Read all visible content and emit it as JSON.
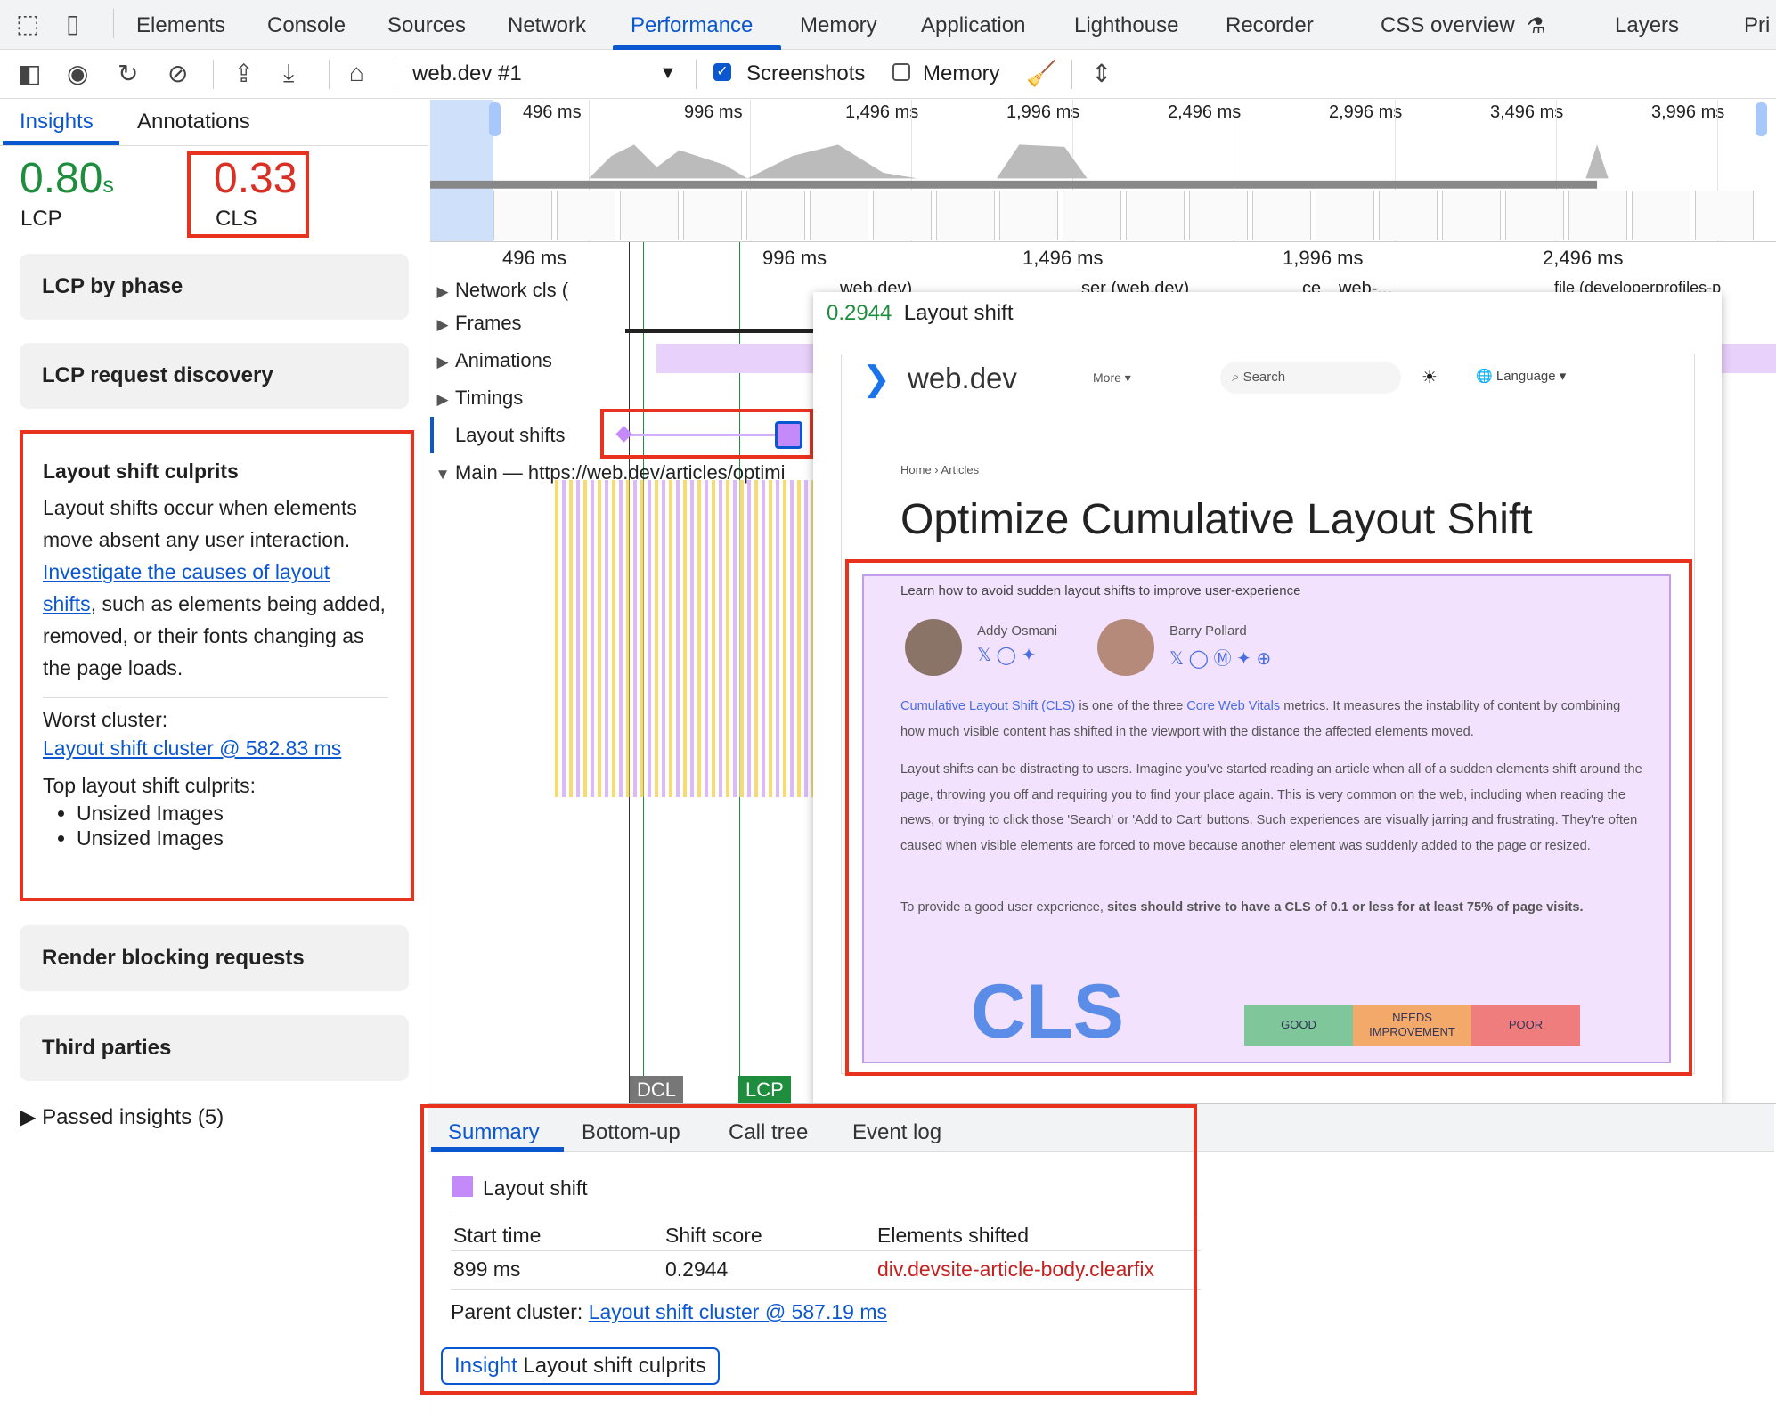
{
  "tabs": {
    "items": [
      "Elements",
      "Console",
      "Sources",
      "Network",
      "Performance",
      "Memory",
      "Application",
      "Lighthouse",
      "Recorder",
      "CSS overview",
      "Layers",
      "Pri"
    ],
    "active": "Performance"
  },
  "toolbar": {
    "recording": "web.dev #1",
    "screenshots_label": "Screenshots",
    "screenshots_checked": true,
    "memory_label": "Memory",
    "memory_checked": false
  },
  "sidebar": {
    "tabs": [
      "Insights",
      "Annotations"
    ],
    "lcp": {
      "value": "0.80",
      "unit": "s",
      "label": "LCP",
      "color": "#1e8e3e"
    },
    "cls": {
      "value": "0.33",
      "label": "CLS",
      "color": "#d93025"
    },
    "cards": [
      "LCP by phase",
      "LCP request discovery",
      "Render blocking requests",
      "Third parties"
    ],
    "culprits": {
      "title": "Layout shift culprits",
      "text1": "Layout shifts occur when elements move absent any user interaction. ",
      "link": "Investigate the causes of layout shifts",
      "text2": ", such as elements being added, removed, or their fonts changing as the page loads.",
      "worst_label": "Worst cluster:",
      "worst_link": "Layout shift cluster @ 582.83 ms",
      "top_label": "Top layout shift culprits:",
      "items": [
        "Unsized Images",
        "Unsized Images"
      ]
    },
    "passed": "Passed insights (5)"
  },
  "overview": {
    "ticks": [
      "496 ms",
      "996 ms",
      "1,496 ms",
      "1,996 ms",
      "2,496 ms",
      "2,996 ms",
      "3,496 ms",
      "3,996 ms"
    ]
  },
  "timeline": {
    "ticks": [
      "496 ms",
      "996 ms",
      "1,496 ms",
      "1,996 ms",
      "2,496 ms"
    ],
    "tracks": [
      "Network cls (",
      "Frames",
      "Animations",
      "Timings",
      "Layout shifts",
      "Main — https://web.dev/articles/optimi"
    ],
    "network_labels": [
      "web.dev)",
      "ser (web.dev)",
      "ce",
      "web-...",
      "file (developerprofiles-p"
    ],
    "markers": [
      "DCL",
      "LCP"
    ]
  },
  "tooltip": {
    "score": "0.2944",
    "label": "Layout shift"
  },
  "screenshot": {
    "site": "web.dev",
    "more": "More",
    "search": "Search",
    "language": "Language",
    "breadcrumb": [
      "Home",
      "Articles"
    ],
    "title": "Optimize Cumulative Layout Shift",
    "subtitle": "Learn how to avoid sudden layout shifts to improve user-experience",
    "authors": [
      "Addy Osmani",
      "Barry Pollard"
    ],
    "p1_link1": "Cumulative Layout Shift (CLS)",
    "p1_a": " is one of the three ",
    "p1_link2": "Core Web Vitals",
    "p1_b": " metrics. It measures the instability of content by combining how much visible content has shifted in the viewport with the distance the affected elements moved.",
    "p2": "Layout shifts can be distracting to users. Imagine you've started reading an article when all of a sudden elements shift around the page, throwing you off and requiring you to find your place again. This is very common on the web, including when reading the news, or trying to click those 'Search' or 'Add to Cart' buttons. Such experiences are visually jarring and frustrating. They're often caused when visible elements are forced to move because another element was suddenly added to the page or resized.",
    "p3_a": "To provide a good user experience, ",
    "p3_b": "sites should strive to have a CLS of 0.1 or less for at least 75% of page visits.",
    "cls_logo": "CLS",
    "scale": [
      "GOOD",
      "NEEDS IMPROVEMENT",
      "POOR"
    ]
  },
  "details": {
    "tabs": [
      "Summary",
      "Bottom-up",
      "Call tree",
      "Event log"
    ],
    "title": "Layout shift",
    "swatch": "#c58af9",
    "headers": [
      "Start time",
      "Shift score",
      "Elements shifted"
    ],
    "row": [
      "899 ms",
      "0.2944",
      "div.devsite-article-body.clearfix"
    ],
    "parent_label": "Parent cluster: ",
    "parent_link": "Layout shift cluster @ 587.19 ms",
    "insight_tag": "Insight",
    "insight_name": "Layout shift culprits"
  }
}
